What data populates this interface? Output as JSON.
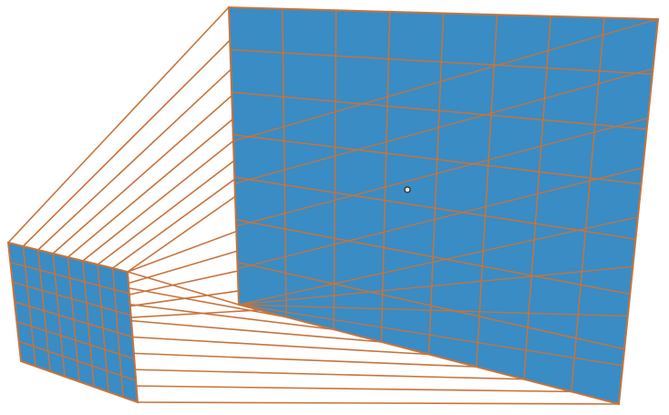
{
  "figure": {
    "fill_color": "#3a8cc4",
    "line_color": "#c8733a",
    "background_color": "#ffffff",
    "grid_columns": 8,
    "grid_rows": 7,
    "projection_lines_per_side": 8
  }
}
